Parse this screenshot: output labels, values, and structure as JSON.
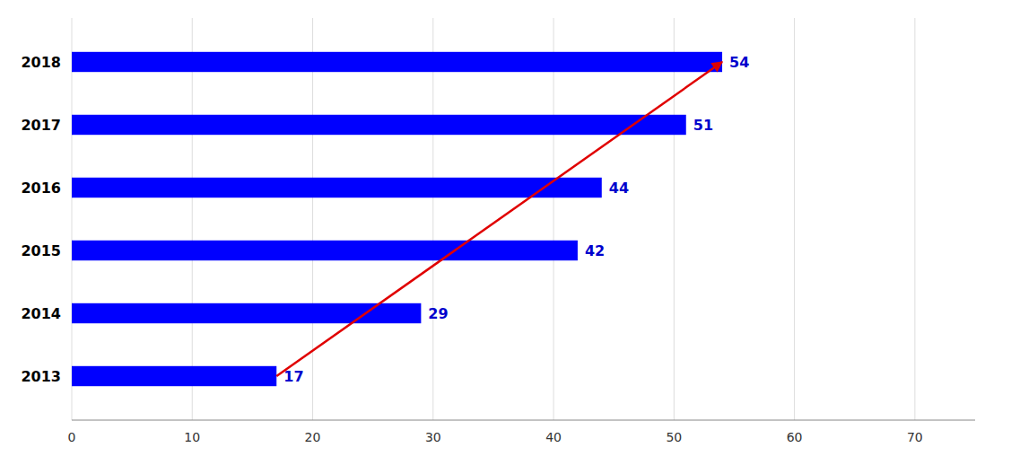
{
  "chart_data": {
    "type": "bar",
    "orientation": "horizontal",
    "categories": [
      "2013",
      "2014",
      "2015",
      "2016",
      "2017",
      "2018"
    ],
    "values": [
      17,
      29,
      42,
      44,
      51,
      54
    ],
    "color": "#0000FF",
    "xlim": [
      0,
      75
    ],
    "xticks": [
      0,
      10,
      20,
      30,
      40,
      50,
      60,
      70
    ],
    "grid": true,
    "data_labels": true
  }
}
